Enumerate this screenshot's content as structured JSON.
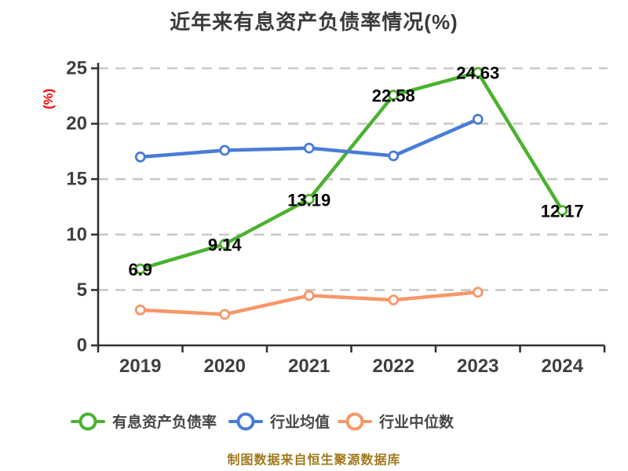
{
  "title": "近年来有息资产负债率情况(%)",
  "y_axis_label": "(%)",
  "footer": "制图数据来自恒生聚源数据库",
  "colors": {
    "axis": "#333333",
    "grid": "#c9c9c9",
    "tick_label": "#3f3f3f",
    "title": "#3a3a3a",
    "data_label": "#050505",
    "footer": "#a0791c",
    "y_axis_label": "#fe0000",
    "marker_fill": "#ffffff"
  },
  "chart_data": {
    "type": "line",
    "title": "近年来有息资产负债率情况(%)",
    "ylabel": "(%)",
    "categories": [
      "2019",
      "2020",
      "2021",
      "2022",
      "2023",
      "2024"
    ],
    "ylim": [
      0,
      25
    ],
    "y_ticks": [
      0,
      5,
      10,
      15,
      20,
      25
    ],
    "grid": "horizontal-dashed",
    "legend_position": "bottom",
    "series": [
      {
        "name": "有息资产负债率",
        "color": "#4bb22f",
        "values": [
          6.9,
          9.14,
          13.19,
          22.58,
          24.63,
          12.17
        ],
        "labels": [
          "6.9",
          "9.14",
          "13.19",
          "22.58",
          "24.63",
          "12.17"
        ]
      },
      {
        "name": "行业均值",
        "color": "#4a7cd6",
        "values": [
          17.0,
          17.6,
          17.8,
          17.1,
          20.4,
          null
        ]
      },
      {
        "name": "行业中位数",
        "color": "#f79767",
        "values": [
          3.2,
          2.8,
          4.5,
          4.1,
          4.8,
          null
        ]
      }
    ]
  }
}
